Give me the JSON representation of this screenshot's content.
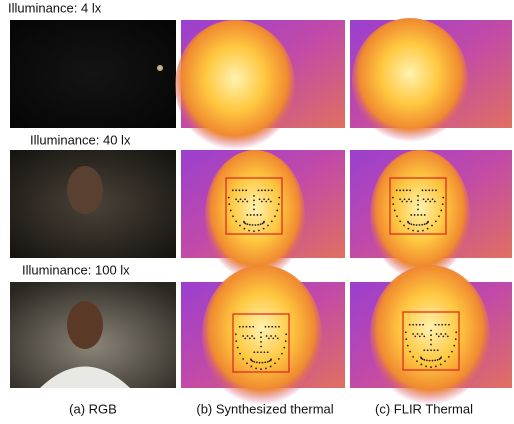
{
  "rows": [
    {
      "label": "Illuminance: 4 lx"
    },
    {
      "label": "Illuminance: 40 lx"
    },
    {
      "label": "Illuminance: 100 lx"
    }
  ],
  "captions": [
    "(a) RGB",
    "(b) Synthesized thermal",
    "(c) FLIR Thermal"
  ]
}
